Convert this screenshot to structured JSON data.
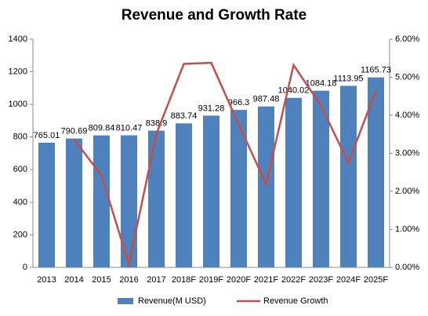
{
  "chart_data": {
    "type": "bar",
    "title": "Revenue and Growth Rate",
    "categories": [
      "2013",
      "2014",
      "2015",
      "2016",
      "2017",
      "2018F",
      "2019F",
      "2020F",
      "2021F",
      "2022F",
      "2023F",
      "2024F",
      "2025F"
    ],
    "series": [
      {
        "name": "Revenue(M USD)",
        "type": "bar",
        "color": "#4f81bd",
        "values": [
          765.01,
          790.69,
          809.84,
          810.47,
          838.9,
          883.74,
          931.28,
          966.3,
          987.48,
          1040.02,
          1084.18,
          1113.95,
          1165.73
        ]
      },
      {
        "name": "Revenue Growth",
        "type": "line",
        "color": "#c0504d",
        "axis": "y2",
        "values": [
          null,
          3.36,
          2.42,
          0.08,
          3.51,
          5.35,
          5.38,
          3.76,
          2.19,
          5.32,
          4.25,
          2.75,
          4.65
        ]
      }
    ],
    "ylim": [
      0,
      1400
    ],
    "yticks": [
      0,
      200,
      400,
      600,
      800,
      1000,
      1200,
      1400
    ],
    "y2lim": [
      0,
      6
    ],
    "y2ticks": [
      {
        "value": 0,
        "label": "0.00%"
      },
      {
        "value": 1,
        "label": "1.00%"
      },
      {
        "value": 2,
        "label": "2.00%"
      },
      {
        "value": 3,
        "label": "3.00%"
      },
      {
        "value": 4,
        "label": "4.00%"
      },
      {
        "value": 5,
        "label": "5.00%"
      },
      {
        "value": 6,
        "label": "6.00%"
      }
    ],
    "grid": false,
    "legend": "bottom"
  }
}
